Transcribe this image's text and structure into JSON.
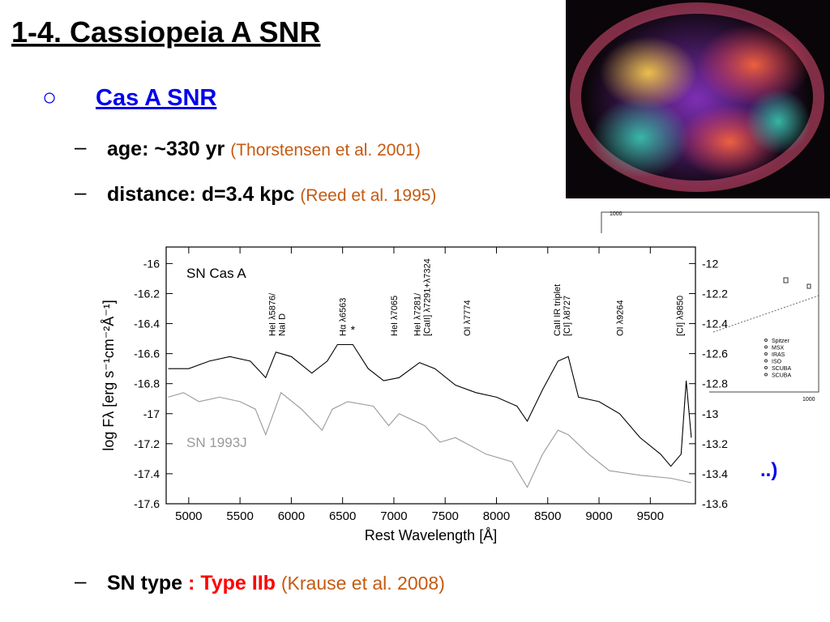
{
  "title": "1-4. Cassiopeia A SNR",
  "bullet": "Cas A SNR",
  "items": [
    {
      "label": "age: ~330 yr",
      "ref": "(Thorstensen et al. 2001)"
    },
    {
      "label": "distance: d=3.4 kpc",
      "ref": "(Reed et al. 1995)"
    }
  ],
  "hidden_text_end": "..)",
  "sn_type": {
    "label": "SN type",
    "value": ": Type IIb",
    "ref": "(Krause et al. 2008)"
  },
  "sed_inset": {
    "top_label": "1000",
    "bottom_label": "1000",
    "legend": [
      "Spitzer",
      "MSX",
      "IRAS",
      "ISO",
      "SCUBA",
      "SCUBA"
    ]
  },
  "chart_data": {
    "type": "line",
    "x_label": "Rest Wavelength [Å]",
    "y_label": "log Fλ [erg s⁻¹cm⁻²Å⁻¹]",
    "xlim": [
      4780,
      9940
    ],
    "xticks": [
      5000,
      5500,
      6000,
      6500,
      7000,
      7500,
      8000,
      8500,
      9000,
      9500
    ],
    "ylim": [
      -17.6,
      -15.89
    ],
    "yticks": [
      -16,
      -16.2,
      -16.4,
      -16.6,
      -16.8,
      -17,
      -17.2,
      -17.4,
      -17.6
    ],
    "y2lim": [
      -13.6,
      -11.89
    ],
    "y2ticks": [
      -12,
      -12.2,
      -12.4,
      -12.6,
      -12.8,
      -13,
      -13.2,
      -13.4,
      -13.6
    ],
    "series": [
      {
        "name": "SN Cas A",
        "color": "#000000",
        "axis": "y2",
        "x": [
          4800,
          5000,
          5200,
          5400,
          5600,
          5750,
          5850,
          6000,
          6200,
          6350,
          6450,
          6600,
          6750,
          6900,
          7050,
          7250,
          7400,
          7600,
          7800,
          8000,
          8200,
          8300,
          8450,
          8600,
          8700,
          8800,
          9000,
          9200,
          9400,
          9600,
          9700,
          9800,
          9850,
          9900
        ],
        "values": [
          -12.7,
          -12.7,
          -12.65,
          -12.62,
          -12.65,
          -12.76,
          -12.59,
          -12.62,
          -12.73,
          -12.65,
          -12.54,
          -12.54,
          -12.7,
          -12.78,
          -12.76,
          -12.66,
          -12.7,
          -12.81,
          -12.86,
          -12.89,
          -12.95,
          -13.05,
          -12.84,
          -12.65,
          -12.62,
          -12.89,
          -12.92,
          -13.0,
          -13.16,
          -13.27,
          -13.35,
          -13.27,
          -12.78,
          -13.16
        ]
      },
      {
        "name": "SN 1993J",
        "color": "#999999",
        "axis": "y",
        "x": [
          4800,
          4950,
          5100,
          5300,
          5500,
          5650,
          5750,
          5900,
          6100,
          6300,
          6400,
          6550,
          6800,
          6950,
          7050,
          7300,
          7450,
          7600,
          7900,
          8150,
          8300,
          8450,
          8600,
          8700,
          8900,
          9100,
          9400,
          9700,
          9900
        ],
        "values": [
          -16.89,
          -16.86,
          -16.92,
          -16.89,
          -16.92,
          -16.97,
          -17.14,
          -16.86,
          -16.97,
          -17.11,
          -16.97,
          -16.92,
          -16.95,
          -17.08,
          -17.0,
          -17.08,
          -17.19,
          -17.16,
          -17.27,
          -17.32,
          -17.49,
          -17.27,
          -17.11,
          -17.14,
          -17.27,
          -17.38,
          -17.41,
          -17.43,
          -17.46
        ]
      }
    ],
    "annotations": [
      {
        "x": 5876,
        "lines": [
          "HeI λ5876/",
          "NaI D"
        ]
      },
      {
        "x": 6563,
        "lines": [
          "Hα λ6563"
        ]
      },
      {
        "x": 6600,
        "lines": [
          "*"
        ]
      },
      {
        "x": 7065,
        "lines": [
          "HeI λ7065"
        ]
      },
      {
        "x": 7290,
        "lines": [
          "HeI λ7281/",
          "[CaII] λ7291+λ7324"
        ]
      },
      {
        "x": 7774,
        "lines": [
          "OI λ7774"
        ]
      },
      {
        "x": 8650,
        "lines": [
          "CaII IR triplet",
          "[CI] λ8727"
        ]
      },
      {
        "x": 9264,
        "lines": [
          "OI λ9264"
        ]
      },
      {
        "x": 9850,
        "lines": [
          "[CI] λ9850"
        ]
      }
    ]
  }
}
